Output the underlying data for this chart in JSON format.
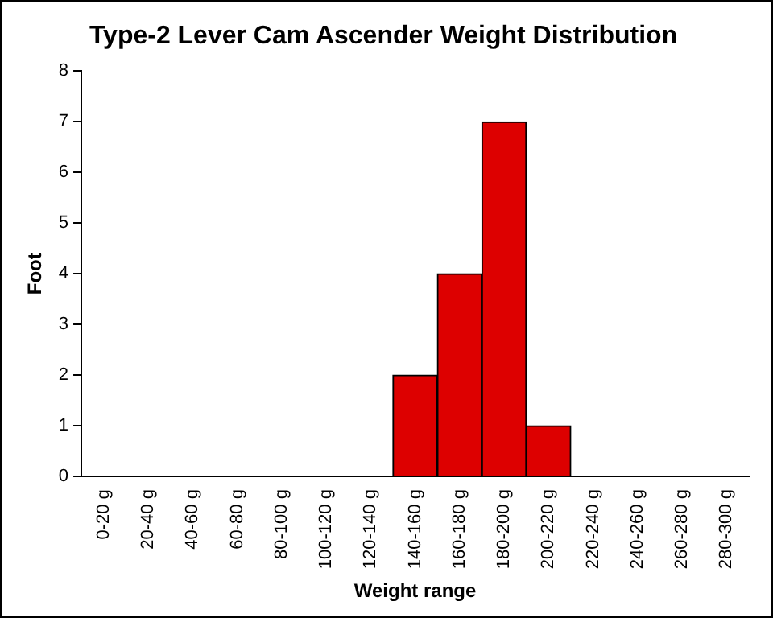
{
  "chart_data": {
    "type": "bar",
    "title": "Type-2 Lever Cam Ascender Weight Distribution",
    "xlabel": "Weight range",
    "ylabel": "Foot",
    "categories": [
      "0-20 g",
      "20-40 g",
      "40-60 g",
      "60-80 g",
      "80-100 g",
      "100-120 g",
      "120-140 g",
      "140-160 g",
      "160-180 g",
      "180-200 g",
      "200-220 g",
      "220-240 g",
      "240-260 g",
      "260-280 g",
      "280-300 g"
    ],
    "values": [
      0,
      0,
      0,
      0,
      0,
      0,
      0,
      2,
      4,
      7,
      1,
      0,
      0,
      0,
      0
    ],
    "color": "#dd0000",
    "ylim": [
      0,
      8
    ],
    "yticks": [
      0,
      1,
      2,
      3,
      4,
      5,
      6,
      7,
      8
    ],
    "grid": false,
    "legend": false
  }
}
